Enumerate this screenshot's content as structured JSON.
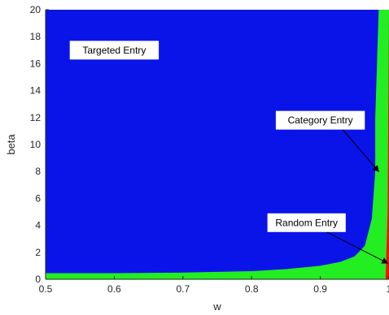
{
  "chart_data": {
    "type": "area",
    "title": "",
    "xlabel": "w",
    "ylabel": "beta",
    "xlim": [
      0.5,
      1.0
    ],
    "ylim": [
      0,
      20
    ],
    "xticks": [
      0.5,
      0.6,
      0.7,
      0.8,
      0.9,
      1.0
    ],
    "xtick_labels": [
      "0.5",
      "0.6",
      "0.7",
      "0.8",
      "0.9",
      "1"
    ],
    "yticks": [
      0,
      2,
      4,
      6,
      8,
      10,
      12,
      14,
      16,
      18,
      20
    ],
    "ytick_labels": [
      "0",
      "2",
      "4",
      "6",
      "8",
      "10",
      "12",
      "14",
      "16",
      "18",
      "20"
    ],
    "grid": false,
    "colors": {
      "targeted": "#0a14e8",
      "category": "#22ee22",
      "random": "#ee1111"
    },
    "regions": [
      {
        "name": "Targeted Entry",
        "color_key": "targeted",
        "description_side": "above green boundary",
        "boundary": {
          "w": [
            0.5,
            0.6,
            0.7,
            0.8,
            0.85,
            0.9,
            0.93,
            0.95,
            0.965,
            0.975,
            0.98,
            0.98,
            0.985
          ],
          "beta": [
            0.45,
            0.45,
            0.5,
            0.6,
            0.75,
            1.0,
            1.3,
            1.7,
            2.5,
            4.5,
            8.0,
            12.0,
            20.0
          ]
        }
      },
      {
        "name": "Category Entry",
        "color_key": "category",
        "description_side": "between blue and red",
        "boundary": {
          "w": [
            0.5,
            0.7,
            0.9,
            0.95,
            0.985,
            0.99,
            0.995,
            0.997,
            0.998
          ],
          "beta": [
            0.1,
            0.1,
            0.15,
            0.25,
            0.5,
            1.0,
            3.0,
            10.0,
            20.0
          ]
        }
      },
      {
        "name": "Random Entry",
        "color_key": "random",
        "description_side": "right edge",
        "boundary": {
          "w": [
            0.995,
            0.998,
            1.0
          ],
          "beta": [
            0.0,
            5.0,
            20.0
          ]
        }
      }
    ],
    "annotations": [
      {
        "text": "Targeted Entry",
        "at": [
          0.6,
          17.0
        ],
        "arrow_to": null
      },
      {
        "text": "Category Entry",
        "at": [
          0.9,
          11.8
        ],
        "arrow_to": [
          0.985,
          8.0
        ]
      },
      {
        "text": "Random Entry",
        "at": [
          0.88,
          4.2
        ],
        "arrow_to": [
          0.998,
          1.2
        ]
      }
    ]
  }
}
